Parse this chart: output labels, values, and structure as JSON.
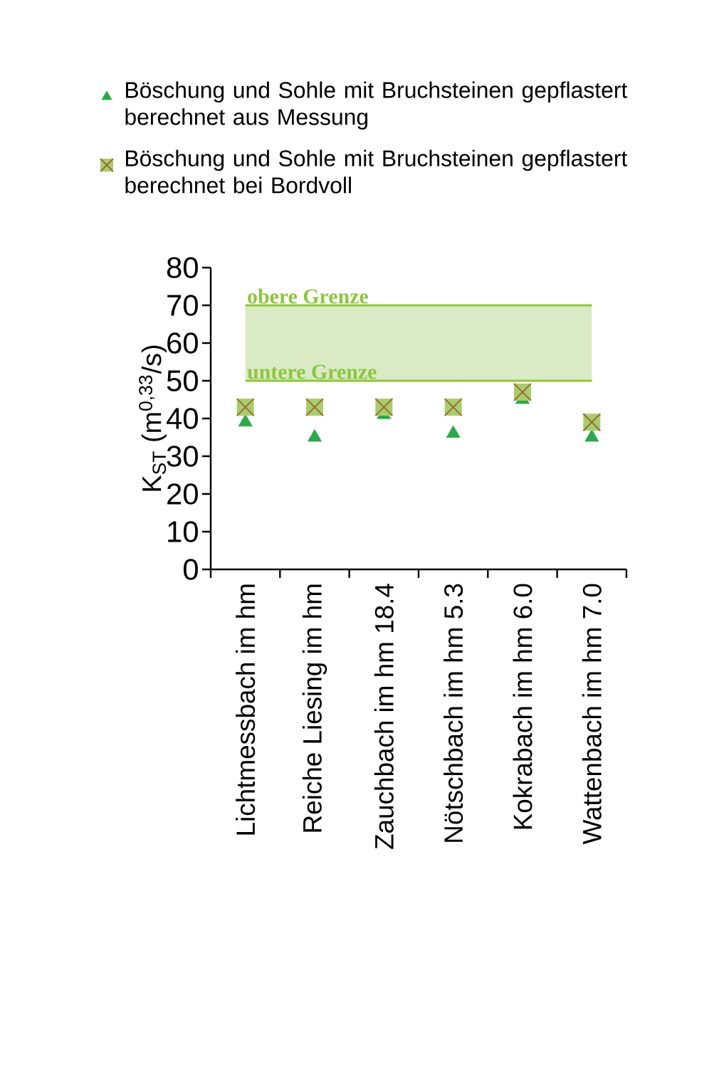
{
  "chart_data": {
    "type": "scatter",
    "ylabel": "K$_{ST}$ (m$^{0,33}$/s)",
    "categories": [
      "Lichtmessbach im hm",
      "Reiche Liesing im hm",
      "Zauchbach im hm 18.4",
      "Nötschbach im hm 5.3",
      "Kokrabach im hm 6.0",
      "Wattenbach im hm 7.0"
    ],
    "series": [
      {
        "name": "Böschung und Sohle mit Bruchsteinen gepflastert berechnet aus Messung",
        "color": "#2ca84a",
        "marker": "triangle",
        "values": [
          39,
          35,
          41,
          36,
          45,
          35
        ]
      },
      {
        "name": "Böschung und Sohle mit Bruchsteinen gepflastert berechnet bei Bordvoll",
        "color": "#a9cd6c",
        "marker": "square",
        "values": [
          43,
          43,
          43,
          43,
          47,
          39
        ]
      }
    ],
    "ylim": [
      0,
      80
    ],
    "yticks": [
      0,
      10,
      20,
      30,
      40,
      50,
      60,
      70,
      80
    ],
    "bands": [
      {
        "axis": "y",
        "from": 50,
        "to": 70,
        "color": "#d9eac4"
      }
    ],
    "ref_lines": [
      {
        "axis": "y",
        "value": 70,
        "label": "obere Grenze",
        "color": "#8dc63f"
      },
      {
        "axis": "y",
        "value": 50,
        "label": "untere Grenze",
        "color": "#8dc63f"
      }
    ],
    "legend": "top",
    "grid": false
  }
}
